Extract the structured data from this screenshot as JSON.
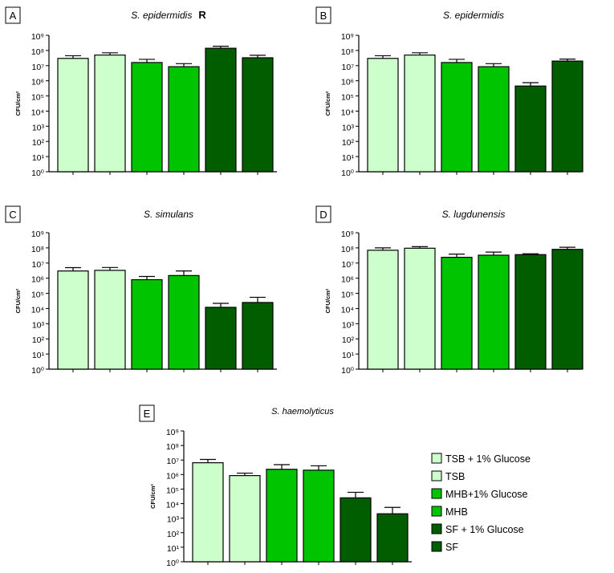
{
  "colors": {
    "TSB + 1% Glucose": "#ccffcc",
    "TSB": "#ccffcc",
    "MHB+1% Glucose": "#00c400",
    "MHB": "#00c400",
    "SF + 1% Glucose": "#005e00",
    "SF": "#005e00"
  },
  "legend": {
    "items": [
      "TSB + 1% Glucose",
      "TSB",
      "MHB+1% Glucose",
      "MHB",
      "SF + 1% Glucose",
      "SF"
    ]
  },
  "chart_data": [
    {
      "type": "bar",
      "panel_label": "A",
      "title": "S. epidermidis",
      "title_suffix": "R",
      "ylabel": "CFU/cm²",
      "yscale": "log",
      "ylim": [
        1,
        1000000000
      ],
      "ytick_labels": [
        "10⁰",
        "10¹",
        "10²",
        "10³",
        "10⁴",
        "10⁵",
        "10⁶",
        "10⁷",
        "10⁸",
        "10⁹"
      ],
      "series": [
        {
          "name": "TSB + 1% Glucose",
          "value": 30000000,
          "error": 15000000
        },
        {
          "name": "TSB",
          "value": 50000000,
          "error": 20000000
        },
        {
          "name": "MHB+1% Glucose",
          "value": 16000000,
          "error": 10000000
        },
        {
          "name": "MHB",
          "value": 8500000,
          "error": 5000000
        },
        {
          "name": "SF + 1% Glucose",
          "value": 140000000,
          "error": 50000000
        },
        {
          "name": "SF",
          "value": 33000000,
          "error": 15000000
        }
      ]
    },
    {
      "type": "bar",
      "panel_label": "B",
      "title": "S. epidermidis",
      "title_suffix": "",
      "ylabel": "CFU/cm²",
      "yscale": "log",
      "ylim": [
        1,
        1000000000
      ],
      "ytick_labels": [
        "10⁰",
        "10¹",
        "10²",
        "10³",
        "10⁴",
        "10⁵",
        "10⁶",
        "10⁷",
        "10⁸",
        "10⁹"
      ],
      "series": [
        {
          "name": "TSB + 1% Glucose",
          "value": 30000000,
          "error": 15000000
        },
        {
          "name": "TSB",
          "value": 50000000,
          "error": 20000000
        },
        {
          "name": "MHB+1% Glucose",
          "value": 16000000,
          "error": 10000000
        },
        {
          "name": "MHB",
          "value": 8500000,
          "error": 5000000
        },
        {
          "name": "SF + 1% Glucose",
          "value": 450000,
          "error": 300000
        },
        {
          "name": "SF",
          "value": 20000000,
          "error": 7000000
        }
      ]
    },
    {
      "type": "bar",
      "panel_label": "C",
      "title": "S. simulans",
      "title_suffix": "",
      "ylabel": "CFU/cm²",
      "yscale": "log",
      "ylim": [
        1,
        1000000000
      ],
      "ytick_labels": [
        "10⁰",
        "10¹",
        "10²",
        "10³",
        "10⁴",
        "10⁵",
        "10⁶",
        "10⁷",
        "10⁸",
        "10⁹"
      ],
      "series": [
        {
          "name": "TSB + 1% Glucose",
          "value": 3000000,
          "error": 2000000
        },
        {
          "name": "TSB",
          "value": 3300000,
          "error": 1800000
        },
        {
          "name": "MHB+1% Glucose",
          "value": 800000,
          "error": 500000
        },
        {
          "name": "MHB",
          "value": 1500000,
          "error": 1500000
        },
        {
          "name": "SF + 1% Glucose",
          "value": 12000,
          "error": 10000
        },
        {
          "name": "SF",
          "value": 25000,
          "error": 30000
        }
      ]
    },
    {
      "type": "bar",
      "panel_label": "D",
      "title": "S. lugdunensis",
      "title_suffix": "",
      "ylabel": "CFU/cm²",
      "yscale": "log",
      "ylim": [
        1,
        1000000000
      ],
      "ytick_labels": [
        "10⁰",
        "10¹",
        "10²",
        "10³",
        "10⁴",
        "10⁵",
        "10⁶",
        "10⁷",
        "10⁸",
        "10⁹"
      ],
      "series": [
        {
          "name": "TSB + 1% Glucose",
          "value": 70000000,
          "error": 30000000
        },
        {
          "name": "TSB",
          "value": 95000000,
          "error": 25000000
        },
        {
          "name": "MHB+1% Glucose",
          "value": 24000000,
          "error": 15000000
        },
        {
          "name": "MHB",
          "value": 33000000,
          "error": 20000000
        },
        {
          "name": "SF + 1% Glucose",
          "value": 36000000,
          "error": 5000000
        },
        {
          "name": "SF",
          "value": 80000000,
          "error": 30000000
        }
      ]
    },
    {
      "type": "bar",
      "panel_label": "E",
      "title": "S. haemolyticus",
      "title_suffix": "",
      "ylabel": "CFU/cm²",
      "yscale": "log",
      "ylim": [
        1,
        1000000000
      ],
      "ytick_labels": [
        "10⁰",
        "10¹",
        "10²",
        "10³",
        "10⁴",
        "10⁵",
        "10⁶",
        "10⁷",
        "10⁸",
        "10⁹"
      ],
      "series": [
        {
          "name": "TSB + 1% Glucose",
          "value": 6500000,
          "error": 4500000
        },
        {
          "name": "TSB",
          "value": 850000,
          "error": 400000
        },
        {
          "name": "MHB+1% Glucose",
          "value": 2300000,
          "error": 2500000
        },
        {
          "name": "MHB",
          "value": 2000000,
          "error": 2000000
        },
        {
          "name": "SF + 1% Glucose",
          "value": 25000,
          "error": 35000
        },
        {
          "name": "SF",
          "value": 2000,
          "error": 3500
        }
      ]
    }
  ]
}
